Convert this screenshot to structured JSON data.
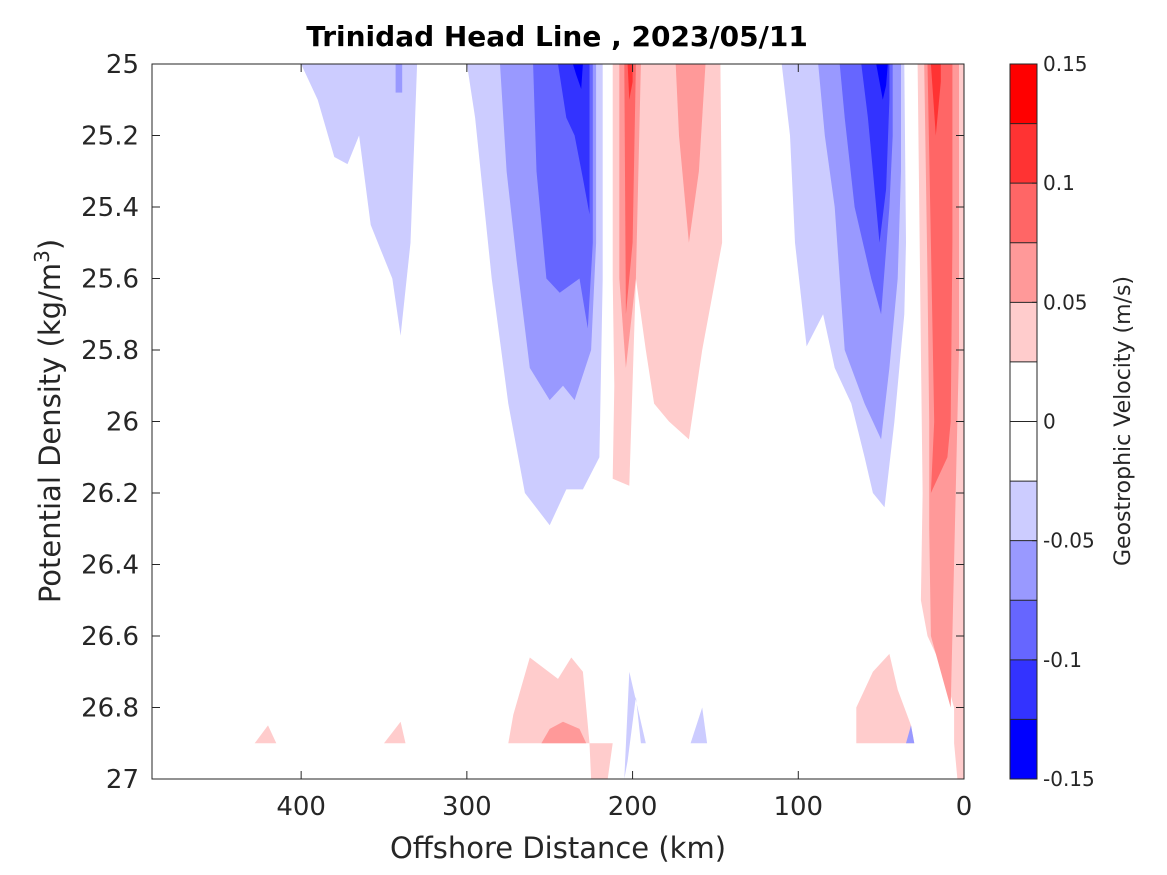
{
  "chart_data": {
    "type": "heatmap",
    "subtype": "filled-contour",
    "title": "Trinidad Head Line , 2023/05/11",
    "xlabel": "Offshore Distance (km)",
    "ylabel": "Potential Density (kg/m",
    "ylabel_sup": "3",
    "ylabel_close": ")",
    "xlim": [
      490,
      0
    ],
    "ylim": [
      25,
      27
    ],
    "x_reversed": true,
    "y_reversed": true,
    "x_ticks": [
      400,
      300,
      200,
      100,
      0
    ],
    "y_ticks": [
      25,
      25.2,
      25.4,
      25.6,
      25.8,
      26,
      26.2,
      26.4,
      26.6,
      26.8,
      27
    ],
    "colorbar": {
      "label": "Geostrophic Velocity (m/s)",
      "range": [
        -0.15,
        0.15
      ],
      "levels": [
        -0.15,
        -0.125,
        -0.1,
        -0.075,
        -0.05,
        -0.025,
        0,
        0.025,
        0.05,
        0.075,
        0.1,
        0.125,
        0.15
      ],
      "ticks": [
        0.15,
        0.1,
        0.05,
        0,
        -0.05,
        -0.1,
        -0.15
      ],
      "tick_labels": [
        "0.15",
        "0.1",
        "0.05",
        "0",
        "-0.05",
        "-0.1",
        "-0.15"
      ],
      "colors_top_to_bottom": [
        "#ff0000",
        "#ff3333",
        "#ff6666",
        "#ff9999",
        "#ffcccc",
        "#ffffff",
        "#ffffff",
        "#ccccff",
        "#9999ff",
        "#6666ff",
        "#3333ff",
        "#0000ff"
      ]
    },
    "grid": false,
    "contours": [
      {
        "name": "neg-offshore-outer",
        "level": -0.025,
        "color": "#ccccff",
        "points": [
          [
            400,
            25
          ],
          [
            390,
            25.1
          ],
          [
            380,
            25.26
          ],
          [
            372,
            25.28
          ],
          [
            365,
            25.2
          ],
          [
            358,
            25.45
          ],
          [
            345,
            25.6
          ],
          [
            340,
            25.76
          ],
          [
            334,
            25.5
          ],
          [
            330,
            25
          ],
          [
            400,
            25
          ]
        ]
      },
      {
        "name": "neg-offshore-core",
        "level": -0.05,
        "color": "#9999ff",
        "points": [
          [
            343,
            25
          ],
          [
            343,
            25.08
          ],
          [
            339,
            25.08
          ],
          [
            339,
            25
          ],
          [
            343,
            25
          ]
        ]
      },
      {
        "name": "neg-mid-outer",
        "level": -0.025,
        "color": "#ccccff",
        "points": [
          [
            300,
            25
          ],
          [
            295,
            25.15
          ],
          [
            285,
            25.6
          ],
          [
            275,
            25.95
          ],
          [
            265,
            26.2
          ],
          [
            250,
            26.29
          ],
          [
            240,
            26.19
          ],
          [
            230,
            26.19
          ],
          [
            220,
            26.1
          ],
          [
            218,
            25.6
          ],
          [
            218,
            25
          ],
          [
            300,
            25
          ]
        ]
      },
      {
        "name": "neg-mid-l2",
        "level": -0.05,
        "color": "#9999ff",
        "points": [
          [
            280,
            25
          ],
          [
            276,
            25.3
          ],
          [
            270,
            25.55
          ],
          [
            262,
            25.85
          ],
          [
            250,
            25.94
          ],
          [
            242,
            25.9
          ],
          [
            235,
            25.94
          ],
          [
            225,
            25.8
          ],
          [
            222,
            25.5
          ],
          [
            222,
            25
          ],
          [
            280,
            25
          ]
        ]
      },
      {
        "name": "neg-mid-l3",
        "level": -0.075,
        "color": "#6666ff",
        "points": [
          [
            260,
            25
          ],
          [
            258,
            25.3
          ],
          [
            252,
            25.6
          ],
          [
            244,
            25.64
          ],
          [
            232,
            25.6
          ],
          [
            227,
            25.74
          ],
          [
            224,
            25.5
          ],
          [
            224,
            25
          ],
          [
            260,
            25
          ]
        ]
      },
      {
        "name": "neg-mid-l4",
        "level": -0.1,
        "color": "#3333ff",
        "points": [
          [
            245,
            25
          ],
          [
            240,
            25.15
          ],
          [
            235,
            25.2
          ],
          [
            230,
            25.32
          ],
          [
            226,
            25.42
          ],
          [
            226,
            25
          ],
          [
            245,
            25
          ]
        ]
      },
      {
        "name": "neg-mid-l5",
        "level": -0.125,
        "color": "#0000ff",
        "points": [
          [
            236,
            25
          ],
          [
            234,
            25.03
          ],
          [
            231,
            25.07
          ],
          [
            230,
            25
          ],
          [
            236,
            25
          ]
        ]
      },
      {
        "name": "pos-200-outer",
        "level": 0.025,
        "color": "#ffcccc",
        "points": [
          [
            212,
            25
          ],
          [
            212,
            25.6
          ],
          [
            211,
            25.9
          ],
          [
            212,
            26.16
          ],
          [
            202,
            26.18
          ],
          [
            198,
            25.6
          ],
          [
            192,
            25.8
          ],
          [
            187,
            25.95
          ],
          [
            178,
            26.0
          ],
          [
            166,
            26.05
          ],
          [
            158,
            25.8
          ],
          [
            146,
            25.5
          ],
          [
            147,
            25
          ],
          [
            212,
            25
          ]
        ]
      },
      {
        "name": "pos-200-l2",
        "level": 0.05,
        "color": "#ff9999",
        "points": [
          [
            208,
            25
          ],
          [
            208,
            25.6
          ],
          [
            204,
            25.85
          ],
          [
            198,
            25.6
          ],
          [
            195,
            25
          ],
          [
            208,
            25
          ]
        ]
      },
      {
        "name": "pos-200-l3",
        "level": 0.075,
        "color": "#ff6666",
        "points": [
          [
            205,
            25
          ],
          [
            204,
            25.7
          ],
          [
            200,
            25.5
          ],
          [
            198,
            25
          ],
          [
            205,
            25
          ]
        ]
      },
      {
        "name": "pos-200-l4",
        "level": 0.1,
        "color": "#ff3333",
        "points": [
          [
            203,
            25
          ],
          [
            202,
            25.1
          ],
          [
            200,
            25.05
          ],
          [
            200,
            25
          ],
          [
            203,
            25
          ]
        ]
      },
      {
        "name": "pos-160-l2",
        "level": 0.05,
        "color": "#ff9999",
        "points": [
          [
            174,
            25
          ],
          [
            172,
            25.2
          ],
          [
            166,
            25.5
          ],
          [
            160,
            25.3
          ],
          [
            156,
            25
          ],
          [
            174,
            25
          ]
        ]
      },
      {
        "name": "neg-near-outer",
        "level": -0.025,
        "color": "#ccccff",
        "points": [
          [
            110,
            25
          ],
          [
            105,
            25.2
          ],
          [
            102,
            25.5
          ],
          [
            95,
            25.79
          ],
          [
            85,
            25.7
          ],
          [
            78,
            25.85
          ],
          [
            68,
            25.95
          ],
          [
            60,
            26.1
          ],
          [
            55,
            26.2
          ],
          [
            48,
            26.24
          ],
          [
            42,
            26.0
          ],
          [
            36,
            25.7
          ],
          [
            35,
            25.5
          ],
          [
            36,
            25
          ],
          [
            110,
            25
          ]
        ]
      },
      {
        "name": "neg-near-l2",
        "level": -0.05,
        "color": "#9999ff",
        "points": [
          [
            88,
            25
          ],
          [
            84,
            25.2
          ],
          [
            78,
            25.4
          ],
          [
            72,
            25.8
          ],
          [
            60,
            25.95
          ],
          [
            50,
            26.05
          ],
          [
            45,
            25.85
          ],
          [
            40,
            25.6
          ],
          [
            38,
            25.3
          ],
          [
            38,
            25
          ],
          [
            88,
            25
          ]
        ]
      },
      {
        "name": "neg-near-l3",
        "level": -0.075,
        "color": "#6666ff",
        "points": [
          [
            75,
            25
          ],
          [
            72,
            25.15
          ],
          [
            66,
            25.4
          ],
          [
            56,
            25.6
          ],
          [
            50,
            25.7
          ],
          [
            45,
            25.4
          ],
          [
            43,
            25.2
          ],
          [
            43,
            25
          ],
          [
            75,
            25
          ]
        ]
      },
      {
        "name": "neg-near-l4",
        "level": -0.1,
        "color": "#3333ff",
        "points": [
          [
            62,
            25
          ],
          [
            58,
            25.15
          ],
          [
            55,
            25.3
          ],
          [
            51,
            25.5
          ],
          [
            47,
            25.35
          ],
          [
            45,
            25.1
          ],
          [
            45,
            25
          ],
          [
            62,
            25
          ]
        ]
      },
      {
        "name": "neg-near-l5",
        "level": -0.125,
        "color": "#0000ff",
        "points": [
          [
            53,
            25
          ],
          [
            51,
            25.05
          ],
          [
            49,
            25.1
          ],
          [
            47,
            25.06
          ],
          [
            46,
            25
          ],
          [
            53,
            25
          ]
        ]
      },
      {
        "name": "pos-coast-outer",
        "level": 0.025,
        "color": "#ffcccc",
        "points": [
          [
            28,
            25
          ],
          [
            26,
            25.8
          ],
          [
            25,
            26.2
          ],
          [
            26,
            26.5
          ],
          [
            22,
            26.6
          ],
          [
            12,
            26.7
          ],
          [
            6,
            26.8
          ],
          [
            6,
            26.9
          ],
          [
            4,
            27
          ],
          [
            0,
            27
          ],
          [
            0,
            25
          ],
          [
            28,
            25
          ]
        ]
      },
      {
        "name": "pos-coast-l2",
        "level": 0.05,
        "color": "#ff9999",
        "points": [
          [
            24,
            25
          ],
          [
            22,
            25.6
          ],
          [
            21,
            26.0
          ],
          [
            21,
            26.3
          ],
          [
            20,
            26.6
          ],
          [
            8,
            26.8
          ],
          [
            5,
            26.2
          ],
          [
            3,
            25.8
          ],
          [
            3,
            25
          ],
          [
            24,
            25
          ]
        ]
      },
      {
        "name": "pos-coast-l3",
        "level": 0.075,
        "color": "#ff6666",
        "points": [
          [
            22,
            25
          ],
          [
            20,
            25.5
          ],
          [
            18,
            26.0
          ],
          [
            20,
            26.2
          ],
          [
            10,
            26.1
          ],
          [
            8,
            26.0
          ],
          [
            7,
            25.5
          ],
          [
            7,
            25
          ],
          [
            22,
            25
          ]
        ]
      },
      {
        "name": "pos-coast-l4",
        "level": 0.1,
        "color": "#ff3333",
        "points": [
          [
            20,
            25
          ],
          [
            17,
            25.2
          ],
          [
            14,
            25.05
          ],
          [
            14,
            25
          ],
          [
            20,
            25
          ]
        ]
      },
      {
        "name": "pos-deep-mid-outer",
        "level": 0.025,
        "color": "#ffcccc",
        "points": [
          [
            275,
            26.9
          ],
          [
            272,
            26.82
          ],
          [
            262,
            26.66
          ],
          [
            245,
            26.72
          ],
          [
            237,
            26.66
          ],
          [
            230,
            26.7
          ],
          [
            226,
            26.9
          ],
          [
            225,
            27
          ],
          [
            215,
            27
          ],
          [
            212,
            26.9
          ],
          [
            275,
            26.9
          ]
        ]
      },
      {
        "name": "pos-deep-mid-l2",
        "level": 0.05,
        "color": "#ff9999",
        "points": [
          [
            255,
            26.9
          ],
          [
            250,
            26.86
          ],
          [
            242,
            26.84
          ],
          [
            232,
            26.86
          ],
          [
            228,
            26.9
          ],
          [
            255,
            26.9
          ]
        ]
      },
      {
        "name": "pos-deep-coast-outer",
        "level": 0.025,
        "color": "#ffcccc",
        "points": [
          [
            65,
            26.9
          ],
          [
            65,
            26.8
          ],
          [
            55,
            26.7
          ],
          [
            45,
            26.65
          ],
          [
            40,
            26.75
          ],
          [
            32,
            26.85
          ],
          [
            30,
            26.9
          ],
          [
            65,
            26.9
          ]
        ]
      },
      {
        "name": "pos-deep-blip-1",
        "level": 0.025,
        "color": "#ffcccc",
        "points": [
          [
            428,
            26.9
          ],
          [
            420,
            26.85
          ],
          [
            415,
            26.9
          ],
          [
            428,
            26.9
          ]
        ]
      },
      {
        "name": "pos-deep-blip-2",
        "level": 0.025,
        "color": "#ffcccc",
        "points": [
          [
            350,
            26.9
          ],
          [
            340,
            26.84
          ],
          [
            337,
            26.9
          ],
          [
            350,
            26.9
          ]
        ]
      },
      {
        "name": "neg-deep-1",
        "level": -0.025,
        "color": "#ccccff",
        "points": [
          [
            205,
            27
          ],
          [
            203,
            26.95
          ],
          [
            198,
            26.77
          ],
          [
            195,
            26.9
          ],
          [
            192,
            26.9
          ],
          [
            202,
            26.7
          ],
          [
            205,
            27
          ]
        ]
      },
      {
        "name": "neg-deep-2",
        "level": -0.025,
        "color": "#ccccff",
        "points": [
          [
            165,
            26.9
          ],
          [
            158,
            26.8
          ],
          [
            155,
            26.9
          ],
          [
            165,
            26.9
          ]
        ]
      },
      {
        "name": "neg-deep-3",
        "level": -0.05,
        "color": "#9999ff",
        "points": [
          [
            35,
            26.9
          ],
          [
            32,
            26.85
          ],
          [
            30,
            26.9
          ],
          [
            35,
            26.9
          ]
        ]
      }
    ]
  }
}
